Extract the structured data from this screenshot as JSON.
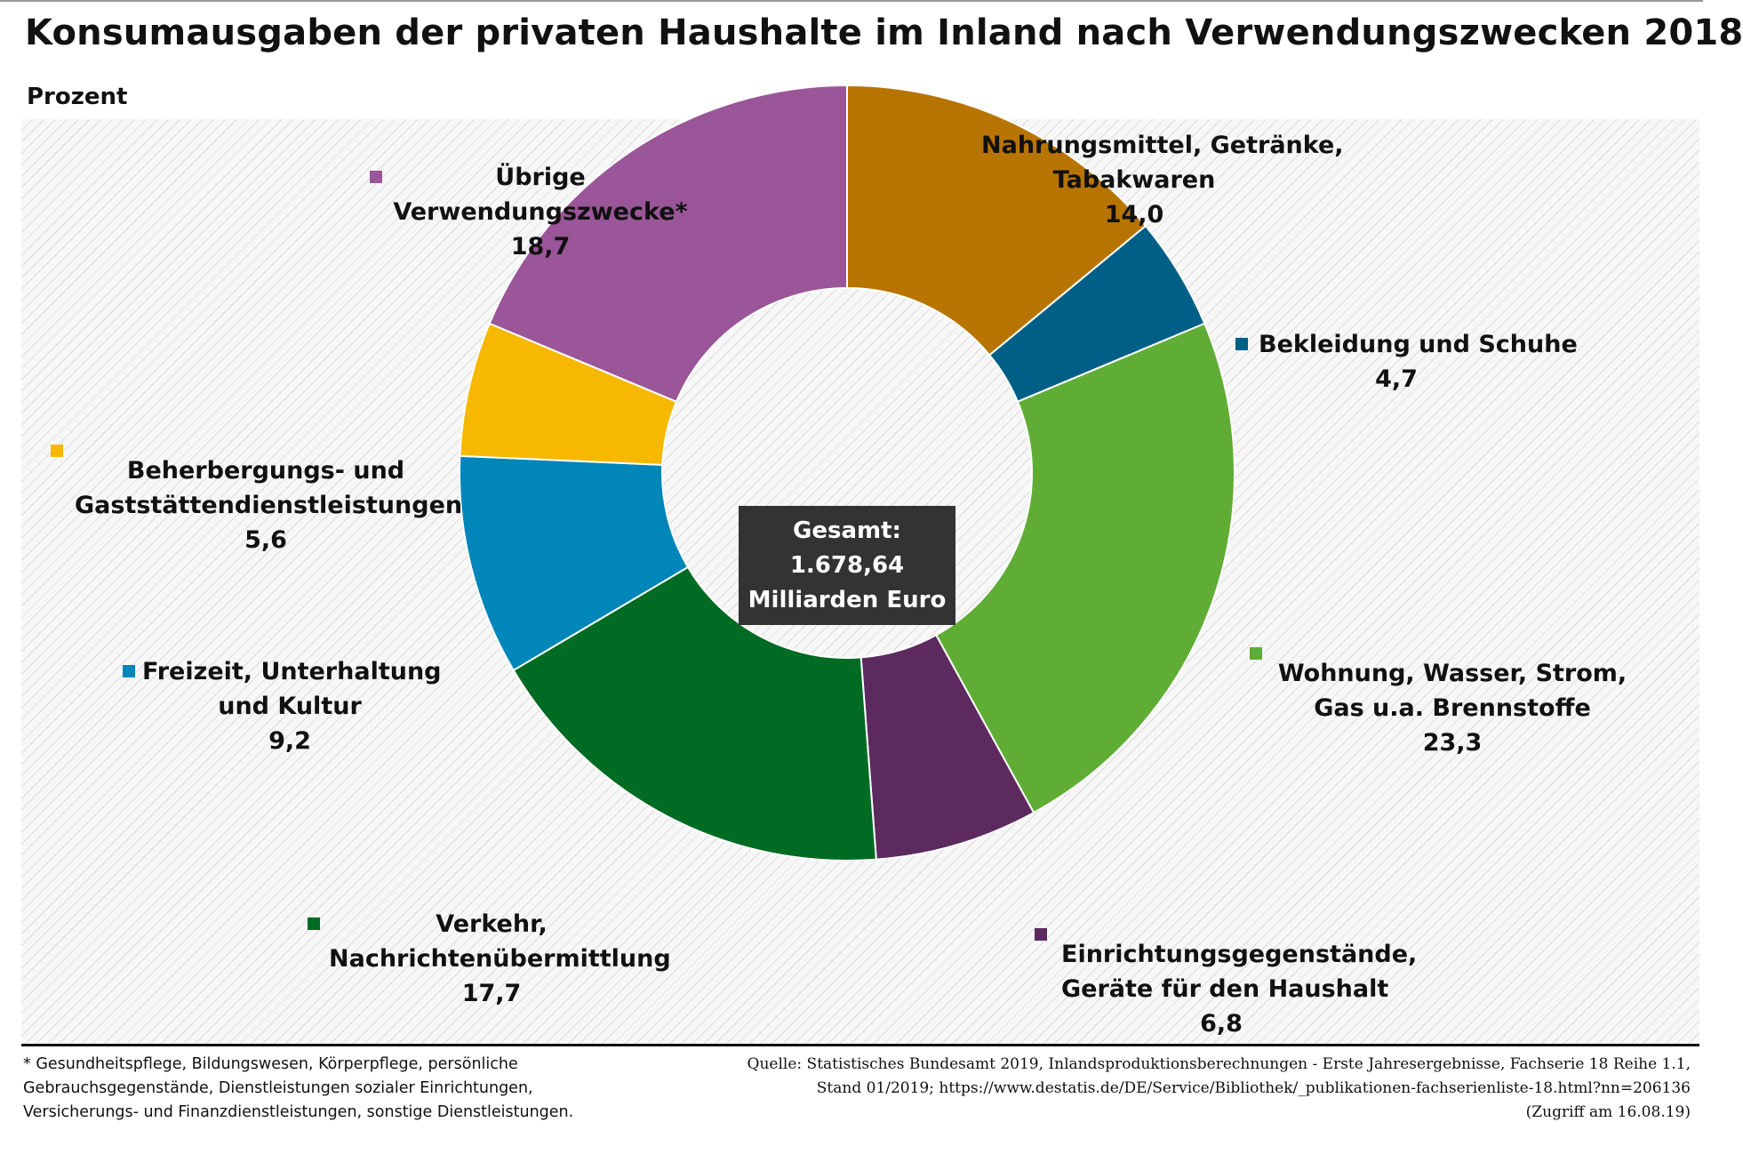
{
  "title": "Konsumausgaben der privaten Haushalte im Inland nach Verwendungszwecken 2018",
  "unit_label": "Prozent",
  "total": {
    "line1": "Gesamt:",
    "line2": "1.678,64",
    "line3": "Milliarden Euro"
  },
  "chart_data": {
    "type": "pie",
    "donut": true,
    "unit": "Prozent",
    "start_angle_deg": 0,
    "direction": "clockwise",
    "slices": [
      {
        "label_lines": [
          "Nahrungsmittel, Getränke,",
          "Tabakwaren"
        ],
        "value": 14.0,
        "value_text": "14,0",
        "color": "#b87400"
      },
      {
        "label_lines": [
          "Bekleidung und Schuhe"
        ],
        "value": 4.7,
        "value_text": "4,7",
        "color": "#005f86"
      },
      {
        "label_lines": [
          "Wohnung, Wasser, Strom,",
          "Gas u.a. Brennstoffe"
        ],
        "value": 23.3,
        "value_text": "23,3",
        "color": "#5fad35"
      },
      {
        "label_lines": [
          "Einrichtungsgegenstände,",
          "Geräte für den Haushalt"
        ],
        "value": 6.8,
        "value_text": "6,8",
        "color": "#5c2a5f"
      },
      {
        "label_lines": [
          "Verkehr,",
          "Nachrichtenübermittlung"
        ],
        "value": 17.7,
        "value_text": "17,7",
        "color": "#006b22"
      },
      {
        "label_lines": [
          "Freizeit, Unterhaltung",
          "und Kultur"
        ],
        "value": 9.2,
        "value_text": "9,2",
        "color": "#0086b9"
      },
      {
        "label_lines": [
          "Beherbergungs- und",
          "Gaststättendienstleistungen"
        ],
        "value": 5.6,
        "value_text": "5,6",
        "color": "#f6b800"
      },
      {
        "label_lines": [
          "Übrige",
          "Verwendungszwecke*"
        ],
        "value": 18.7,
        "value_text": "18,7",
        "color": "#9a5699"
      }
    ]
  },
  "footnote": [
    "* Gesundheitspflege, Bildungswesen, Körperpflege, persönliche",
    "Gebrauchsgegenstände, Dienstleistungen sozialer Einrichtungen,",
    "Versicherungs- und Finanzdienstleistungen, sonstige Dienstleistungen."
  ],
  "source": [
    "Quelle: Statistisches Bundesamt 2019, Inlandsproduktionsberechnungen - Erste Jahresergebnisse, Fachserie 18 Reihe 1.1,",
    "Stand 01/2019; https://www.destatis.de/DE/Service/Bibliothek/_publikationen-fachserienliste-18.html?nn=206136",
    "(Zugriff am 16.08.19)"
  ]
}
